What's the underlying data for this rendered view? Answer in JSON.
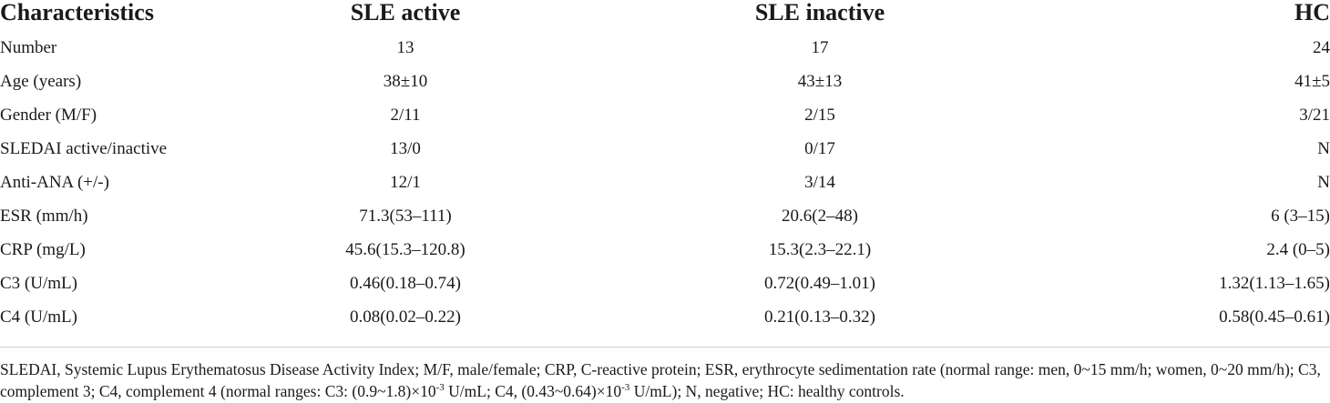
{
  "table": {
    "headers": [
      "Characteristics",
      "SLE active",
      "SLE inactive",
      "HC"
    ],
    "rows": [
      [
        "Number",
        "13",
        "17",
        "24"
      ],
      [
        "Age (years)",
        "38±10",
        "43±13",
        "41±5"
      ],
      [
        "Gender (M/F)",
        "2/11",
        "2/15",
        "3/21"
      ],
      [
        "SLEDAI active/inactive",
        "13/0",
        "0/17",
        "N"
      ],
      [
        "Anti-ANA (+/-)",
        "12/1",
        "3/14",
        "N"
      ],
      [
        "ESR (mm/h)",
        "71.3(53–111)",
        "20.6(2–48)",
        "6 (3–15)"
      ],
      [
        "CRP (mg/L)",
        "45.6(15.3–120.8)",
        "15.3(2.3–22.1)",
        "2.4 (0–5)"
      ],
      [
        "C3 (U/mL)",
        "0.46(0.18–0.74)",
        "0.72(0.49–1.01)",
        "1.32(1.13–1.65)"
      ],
      [
        "C4 (U/mL)",
        "0.08(0.02–0.22)",
        "0.21(0.13–0.32)",
        "0.58(0.45–0.61)"
      ]
    ]
  },
  "footnote": {
    "part1": "SLEDAI, Systemic Lupus Erythematosus Disease Activity Index; M/F, male/female; CRP, C-reactive protein; ESR, erythrocyte sedimentation rate (normal range: men, 0~15 mm/h; women, 0~20 mm/h); C3, complement 3; C4, complement 4 (normal ranges: C3: (0.9~1.8)×10",
    "exp1": "-3",
    "part2": " U/mL; C4, (0.43~0.64)×10",
    "exp2": "-3",
    "part3": " U/mL); N, negative; HC: healthy controls."
  }
}
